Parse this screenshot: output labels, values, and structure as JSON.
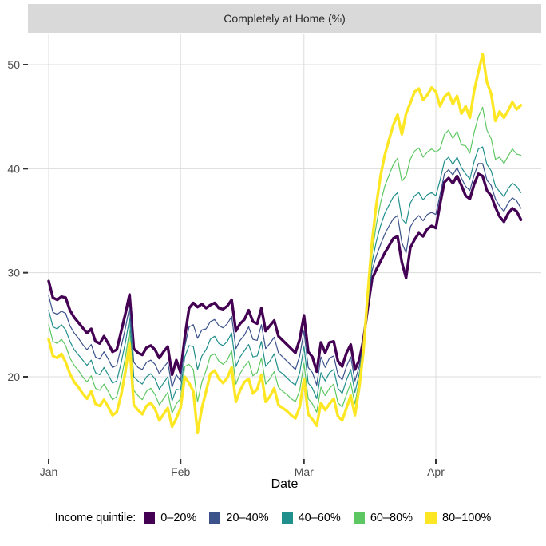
{
  "strip_title": "Completely at Home (%)",
  "axes": {
    "x_title": "Date",
    "y_ticks": [
      50,
      40,
      30,
      20
    ],
    "x_ticks": [
      "Jan",
      "Feb",
      "Mar",
      "Apr"
    ],
    "tick_color": "#333333",
    "grid_color": "#dcdcdc",
    "label_color": "#4d4d4d"
  },
  "legend": {
    "title": "Income quintile:",
    "items": [
      {
        "label": "0–20%",
        "color": "#440154"
      },
      {
        "label": "20–40%",
        "color": "#3B528B"
      },
      {
        "label": "40–60%",
        "color": "#21908C"
      },
      {
        "label": "60–80%",
        "color": "#5DC863"
      },
      {
        "label": "80–100%",
        "color": "#FDE725"
      }
    ]
  },
  "chart_data": {
    "type": "line",
    "title": "Completely at Home (%)",
    "xlabel": "Date",
    "ylabel": "",
    "x_unit": "daily values, Jan 1 to Apr 21",
    "n_points": 112,
    "x_tick_positions": [
      0,
      31,
      60,
      91
    ],
    "x_tick_labels": [
      "Jan",
      "Feb",
      "Mar",
      "Apr"
    ],
    "ylim": [
      12,
      53
    ],
    "y_tick_values": [
      20,
      30,
      40,
      50
    ],
    "grid": "major only",
    "legend_position": "bottom",
    "series": [
      {
        "name": "0–20%",
        "color": "#440154",
        "thick": true,
        "values": [
          29.2,
          27.6,
          27.4,
          27.7,
          27.6,
          26.4,
          25.7,
          25.2,
          24.7,
          24.2,
          24.6,
          23.4,
          23.2,
          23.9,
          23.2,
          22.4,
          22.6,
          24.3,
          26.0,
          27.9,
          22.7,
          22.3,
          22.1,
          22.8,
          23.0,
          22.6,
          21.8,
          22.4,
          22.9,
          20.2,
          21.6,
          20.4,
          23.8,
          26.6,
          27.1,
          26.7,
          27.0,
          26.6,
          26.9,
          27.1,
          26.6,
          26.5,
          26.8,
          27.4,
          24.4,
          25.1,
          25.5,
          26.4,
          25.3,
          25.1,
          26.6,
          24.4,
          24.9,
          25.4,
          23.9,
          23.5,
          23.1,
          22.7,
          22.3,
          23.6,
          25.9,
          22.4,
          21.9,
          20.5,
          23.3,
          22.3,
          23.3,
          23.4,
          21.5,
          21.0,
          22.3,
          23.1,
          20.7,
          21.6,
          23.6,
          26.6,
          29.4,
          30.3,
          31.1,
          31.9,
          32.6,
          33.3,
          33.5,
          31.0,
          29.5,
          32.4,
          33.2,
          33.8,
          33.5,
          34.2,
          34.5,
          34.3,
          36.6,
          38.7,
          39.1,
          38.6,
          39.3,
          38.4,
          37.4,
          37.1,
          38.5,
          39.5,
          39.3,
          37.9,
          37.4,
          36.3,
          35.4,
          34.9,
          35.7,
          36.2,
          35.9,
          35.1
        ]
      },
      {
        "name": "20–40%",
        "color": "#3B528B",
        "thick": false,
        "values": [
          27.8,
          26.2,
          26.0,
          26.3,
          26.1,
          24.9,
          24.2,
          23.7,
          23.1,
          22.6,
          23.1,
          21.9,
          21.7,
          22.4,
          21.7,
          20.9,
          21.1,
          22.8,
          24.6,
          26.7,
          21.4,
          20.9,
          20.7,
          21.4,
          21.6,
          21.2,
          20.3,
          20.9,
          21.4,
          19.0,
          20.2,
          19.6,
          22.9,
          24.8,
          25.0,
          23.7,
          24.5,
          24.6,
          25.3,
          25.5,
          24.9,
          24.7,
          25.1,
          25.8,
          22.7,
          23.5,
          24.0,
          24.8,
          23.6,
          23.5,
          25.0,
          22.7,
          23.2,
          23.8,
          22.3,
          21.9,
          21.5,
          21.1,
          20.7,
          22.0,
          24.4,
          20.9,
          20.4,
          19.2,
          21.9,
          20.9,
          21.8,
          22.0,
          20.2,
          19.7,
          21.0,
          21.9,
          19.6,
          21.0,
          23.3,
          26.9,
          30.2,
          31.6,
          32.7,
          33.7,
          34.5,
          35.2,
          35.5,
          32.9,
          31.9,
          34.4,
          35.1,
          35.5,
          35.0,
          35.6,
          35.8,
          35.6,
          37.5,
          39.5,
          39.9,
          39.4,
          40.1,
          39.1,
          38.3,
          37.9,
          39.4,
          40.5,
          40.5,
          38.9,
          38.4,
          37.1,
          36.4,
          35.9,
          36.7,
          37.2,
          36.9,
          36.2
        ]
      },
      {
        "name": "40–60%",
        "color": "#21908C",
        "thick": false,
        "values": [
          26.4,
          24.8,
          24.6,
          25.0,
          24.5,
          23.4,
          22.6,
          22.1,
          21.6,
          21.1,
          21.6,
          20.4,
          20.2,
          20.9,
          20.2,
          19.4,
          19.6,
          21.3,
          23.2,
          25.6,
          20.0,
          19.6,
          19.3,
          20.0,
          20.3,
          19.8,
          18.8,
          19.4,
          20.0,
          17.7,
          18.8,
          18.7,
          21.9,
          23.0,
          22.9,
          20.7,
          22.0,
          22.6,
          23.6,
          23.9,
          23.2,
          23.0,
          23.4,
          24.2,
          21.0,
          21.9,
          22.5,
          23.1,
          21.9,
          22.0,
          23.4,
          21.0,
          21.5,
          22.2,
          20.6,
          20.3,
          19.9,
          19.5,
          19.2,
          20.4,
          22.9,
          19.4,
          18.9,
          17.9,
          20.4,
          19.6,
          20.4,
          20.7,
          18.9,
          18.4,
          19.7,
          20.7,
          18.5,
          20.3,
          23.1,
          27.2,
          31.0,
          33.0,
          34.5,
          35.7,
          36.5,
          37.3,
          37.7,
          35.2,
          34.7,
          36.7,
          37.4,
          37.7,
          37.0,
          37.5,
          37.7,
          37.4,
          38.9,
          40.7,
          41.1,
          40.4,
          41.1,
          40.1,
          39.5,
          39.0,
          40.7,
          41.9,
          42.1,
          40.4,
          39.8,
          38.3,
          37.8,
          37.3,
          38.1,
          38.6,
          38.3,
          37.7
        ]
      },
      {
        "name": "60–80%",
        "color": "#5DC863",
        "thick": false,
        "values": [
          25.0,
          23.4,
          23.2,
          23.6,
          23.0,
          21.8,
          21.1,
          20.6,
          20.0,
          19.5,
          20.1,
          18.9,
          18.7,
          19.3,
          18.6,
          17.8,
          18.1,
          19.7,
          21.8,
          24.4,
          18.7,
          18.2,
          17.8,
          18.6,
          18.9,
          18.3,
          17.3,
          17.9,
          18.5,
          16.5,
          17.4,
          17.9,
          21.0,
          21.2,
          20.7,
          17.6,
          19.5,
          20.6,
          22.0,
          22.2,
          21.5,
          21.2,
          21.6,
          22.5,
          19.3,
          20.3,
          21.0,
          21.5,
          20.1,
          20.4,
          21.8,
          19.3,
          19.8,
          20.5,
          19.0,
          18.6,
          18.3,
          17.9,
          17.6,
          18.7,
          21.3,
          17.9,
          17.4,
          16.6,
          19.0,
          18.2,
          18.9,
          19.3,
          17.5,
          17.1,
          18.3,
          19.4,
          17.4,
          19.7,
          22.8,
          27.6,
          31.9,
          34.6,
          36.7,
          38.3,
          39.4,
          40.4,
          41.0,
          38.8,
          39.3,
          40.9,
          41.7,
          42.0,
          41.1,
          41.6,
          41.9,
          41.6,
          41.9,
          43.3,
          43.7,
          42.9,
          43.6,
          42.3,
          42.2,
          41.5,
          43.5,
          45.0,
          45.9,
          43.7,
          42.9,
          40.9,
          41.1,
          40.5,
          41.2,
          41.9,
          41.4,
          41.3
        ]
      },
      {
        "name": "80–100%",
        "color": "#FDE725",
        "thick": true,
        "values": [
          23.6,
          22.0,
          21.8,
          22.2,
          21.4,
          20.3,
          19.5,
          19.0,
          18.4,
          17.9,
          18.6,
          17.4,
          17.2,
          17.8,
          17.1,
          16.3,
          16.6,
          18.2,
          20.4,
          23.2,
          17.3,
          16.8,
          16.4,
          17.2,
          17.5,
          16.9,
          15.8,
          16.4,
          17.0,
          15.2,
          16.0,
          17.0,
          20.0,
          19.4,
          18.6,
          14.6,
          17.0,
          18.6,
          20.3,
          20.6,
          19.8,
          19.4,
          19.9,
          20.9,
          17.6,
          18.7,
          19.5,
          19.8,
          18.4,
          18.8,
          20.2,
          17.6,
          18.1,
          18.9,
          17.3,
          17.0,
          16.7,
          16.3,
          16.0,
          17.1,
          19.8,
          16.4,
          15.9,
          15.3,
          17.5,
          16.8,
          17.4,
          17.9,
          16.2,
          15.8,
          17.0,
          18.2,
          16.3,
          19.0,
          22.5,
          28.0,
          33.0,
          36.5,
          39.3,
          41.3,
          42.8,
          44.2,
          45.2,
          43.3,
          45.3,
          46.3,
          47.4,
          47.7,
          46.6,
          47.1,
          47.8,
          47.4,
          46.0,
          46.9,
          47.3,
          46.2,
          47.0,
          45.3,
          46.0,
          44.9,
          47.5,
          49.3,
          51.0,
          48.3,
          47.2,
          44.6,
          45.5,
          44.9,
          45.6,
          46.4,
          45.7,
          46.1
        ]
      }
    ]
  }
}
